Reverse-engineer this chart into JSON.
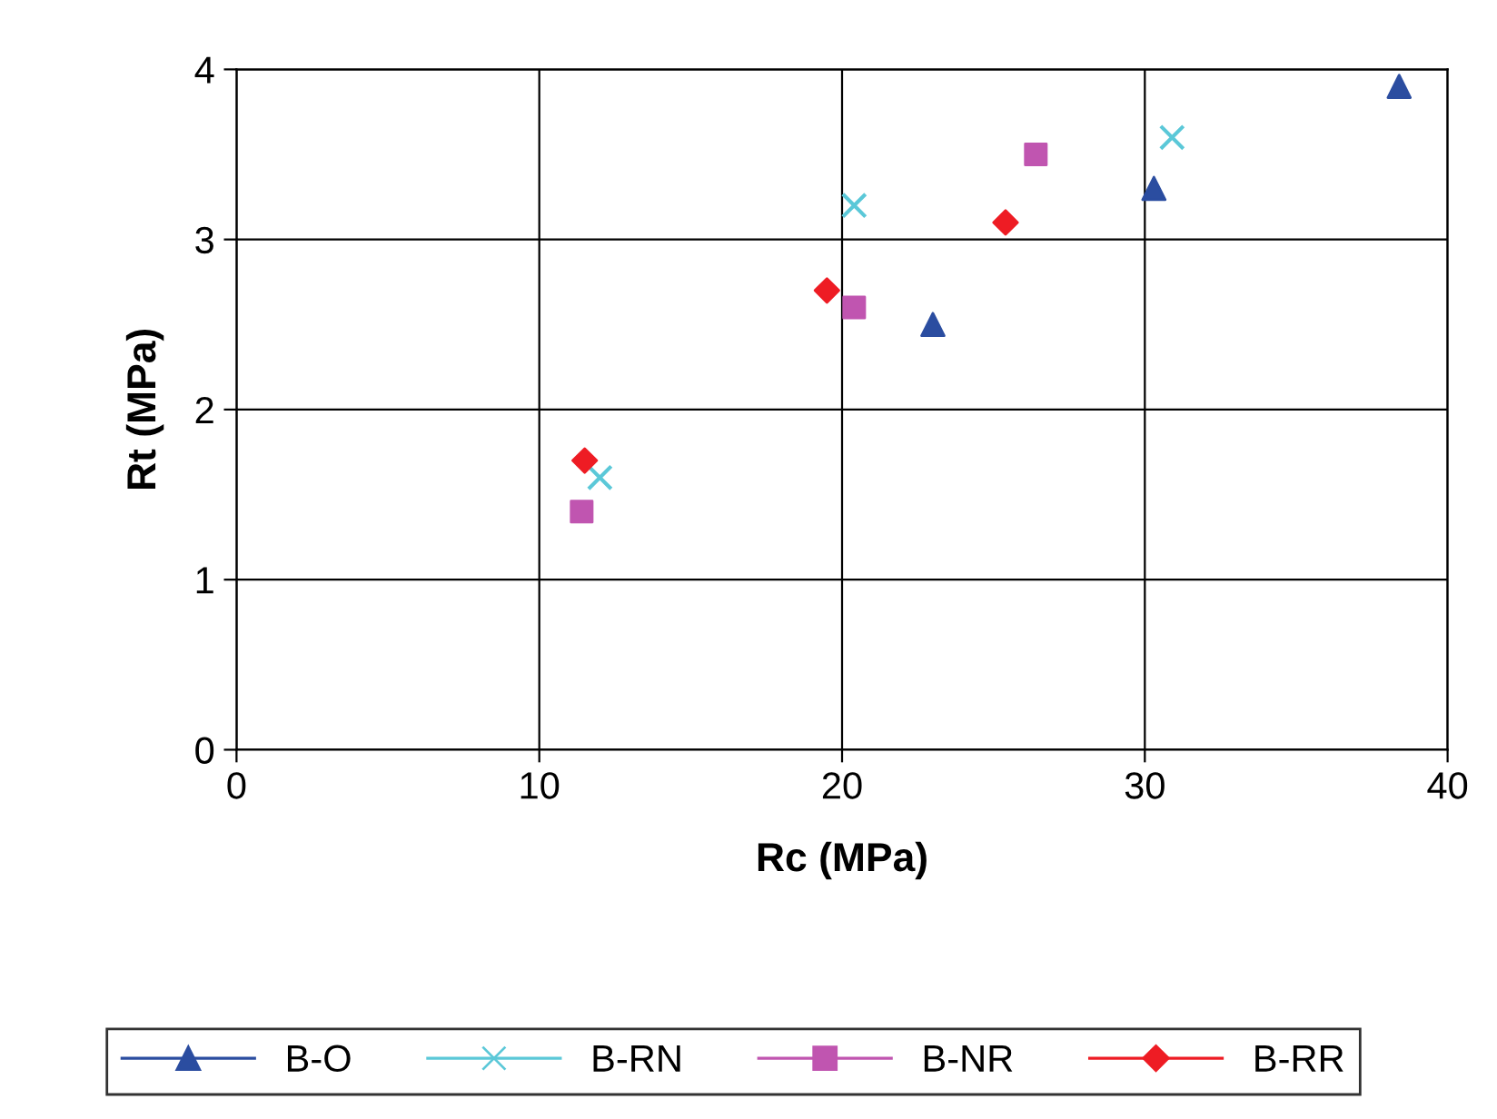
{
  "chart_data": {
    "type": "scatter",
    "xlabel": "Rc (MPa)",
    "ylabel": "Rt (MPa)",
    "xlim": [
      0,
      40
    ],
    "xticks": [
      0,
      10,
      20,
      30,
      40
    ],
    "ylim": [
      0,
      4
    ],
    "yticks": [
      0,
      1,
      2,
      3,
      4
    ],
    "grid": true,
    "legend": "bottom",
    "series": [
      {
        "name": "B-O",
        "color": "#2b4da0",
        "marker": "triangle",
        "x": [
          23,
          30.3,
          38.4
        ],
        "values": [
          2.5,
          3.3,
          3.9
        ]
      },
      {
        "name": "B-RN",
        "color": "#5bc8d8",
        "marker": "cross",
        "x": [
          12.0,
          20.4,
          30.9
        ],
        "values": [
          1.6,
          3.2,
          3.6
        ]
      },
      {
        "name": "B-NR",
        "color": "#c055b0",
        "marker": "square",
        "x": [
          11.4,
          20.4,
          26.4
        ],
        "values": [
          1.4,
          2.6,
          3.5
        ]
      },
      {
        "name": "B-RR",
        "color": "#ee1c24",
        "marker": "diamond",
        "x": [
          11.5,
          19.5,
          25.4
        ],
        "values": [
          1.7,
          2.7,
          3.1
        ]
      }
    ]
  }
}
